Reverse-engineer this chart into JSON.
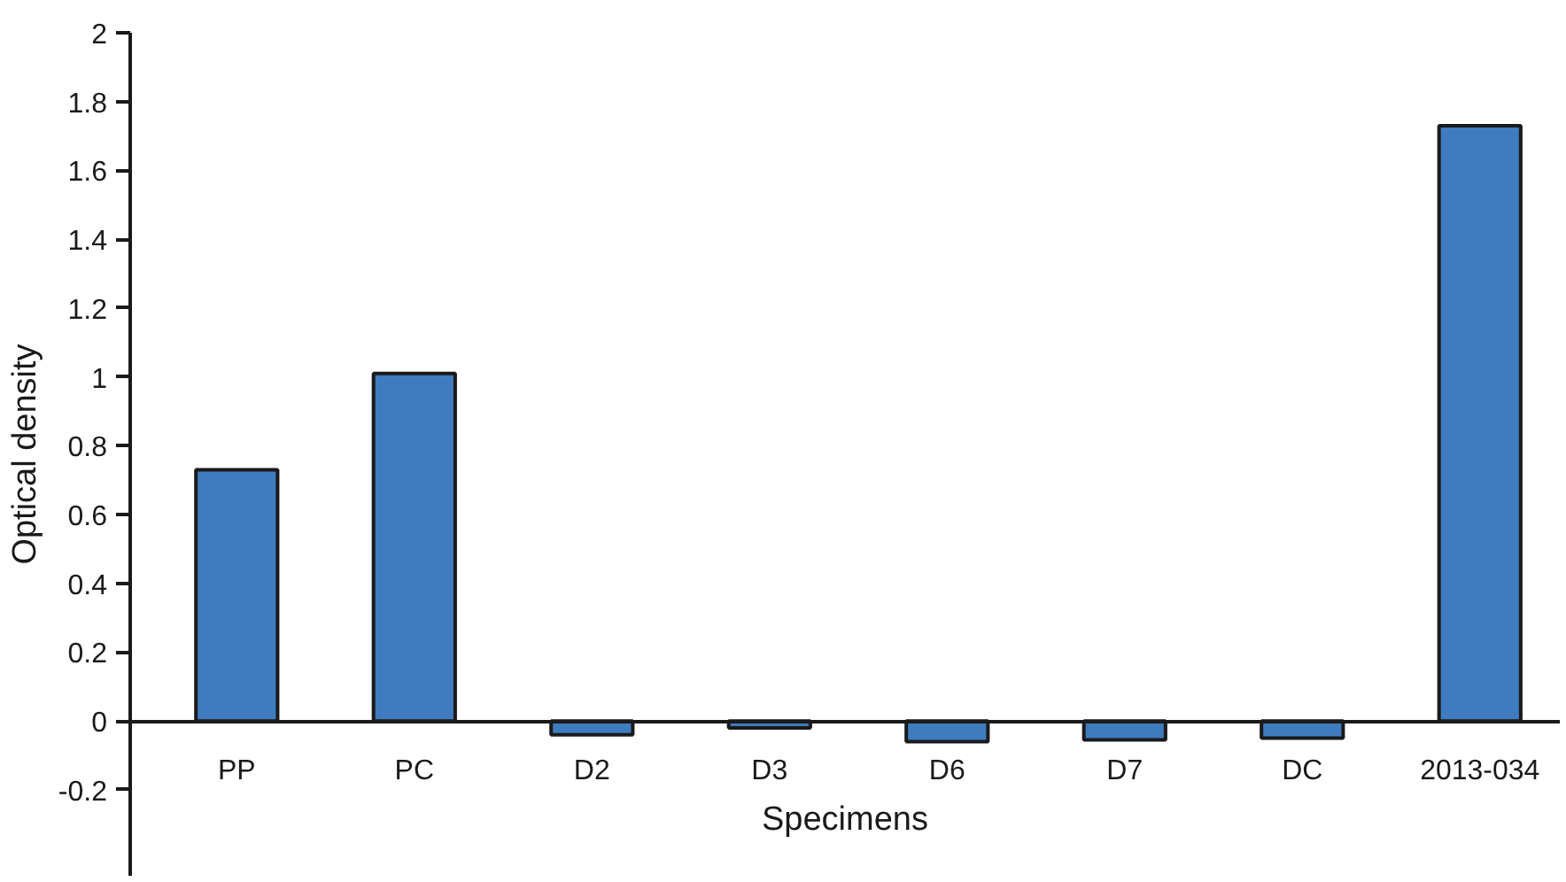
{
  "chart_data": {
    "type": "bar",
    "xlabel": "Specimens",
    "ylabel": "Optical density",
    "categories": [
      "PP",
      "PC",
      "D2",
      "D3",
      "D6",
      "D7",
      "DC",
      "2013-034"
    ],
    "values": [
      0.73,
      1.01,
      -0.04,
      -0.02,
      -0.06,
      -0.055,
      -0.05,
      1.73
    ],
    "color": "#3f7bbf",
    "ylim": [
      -0.45,
      2
    ],
    "yticks": [
      -0.2,
      0,
      0.2,
      0.4,
      0.6,
      0.8,
      1,
      1.2,
      1.4,
      1.6,
      1.8,
      2
    ],
    "grid": false
  }
}
